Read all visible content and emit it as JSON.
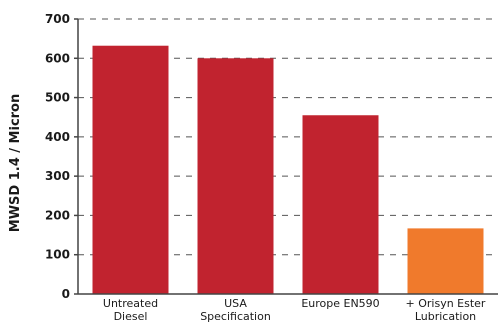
{
  "chart_data": {
    "type": "bar",
    "ylabel": "MWSD 1.4 / Micron",
    "xlabel": "",
    "ylim": [
      0,
      700
    ],
    "yticks": [
      0,
      100,
      200,
      300,
      400,
      500,
      600,
      700
    ],
    "grid": "horizontal-dashed",
    "categories": [
      [
        "Untreated",
        "Diesel"
      ],
      [
        "USA",
        "Specification"
      ],
      [
        "Europe EN590"
      ],
      [
        "+ Orisyn Ester",
        "Lubrication"
      ]
    ],
    "values": [
      632,
      600,
      455,
      167
    ],
    "colors": [
      "#c1232f",
      "#c1232f",
      "#c1232f",
      "#f07a2c"
    ]
  }
}
